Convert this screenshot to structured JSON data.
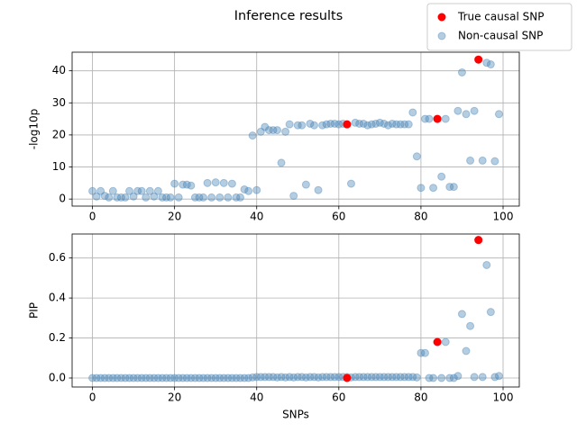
{
  "title": "Inference results",
  "chart_data": [
    {
      "type": "scatter",
      "ylabel": "-log10p",
      "grid": true,
      "legend": "upper right",
      "xlim": [
        -4.95,
        103.95
      ],
      "xticks": [
        0,
        20,
        40,
        60,
        80,
        100
      ],
      "ylim": [
        -2.2,
        45.8
      ],
      "yticks": [
        0,
        10,
        20,
        30,
        40
      ],
      "series": [
        {
          "name": "True causal SNP",
          "color": "#ff0000",
          "alpha": 1,
          "x": [
            62,
            84,
            94
          ],
          "values": [
            23.3,
            25,
            43.5
          ]
        },
        {
          "name": "Non-causal SNP",
          "color": "#4682b4",
          "alpha": 0.4,
          "x": [
            0,
            1,
            2,
            3,
            4,
            5,
            6,
            7,
            8,
            9,
            10,
            11,
            12,
            13,
            14,
            15,
            16,
            17,
            18,
            19,
            20,
            21,
            22,
            23,
            24,
            25,
            26,
            27,
            28,
            29,
            30,
            31,
            32,
            33,
            34,
            35,
            36,
            37,
            38,
            39,
            40,
            41,
            42,
            43,
            44,
            45,
            46,
            47,
            48,
            49,
            50,
            51,
            52,
            53,
            54,
            55,
            56,
            57,
            58,
            59,
            60,
            61,
            62,
            63,
            64,
            65,
            66,
            67,
            68,
            69,
            70,
            71,
            72,
            73,
            74,
            75,
            76,
            77,
            78,
            79,
            80,
            81,
            82,
            83,
            84,
            85,
            86,
            87,
            88,
            89,
            90,
            91,
            92,
            93,
            94,
            95,
            96,
            97,
            98,
            99
          ],
          "values": [
            2.5,
            0.8,
            2.5,
            1,
            0.5,
            2.5,
            0.5,
            0.5,
            0.5,
            2.5,
            0.8,
            2.5,
            2.5,
            0.5,
            2.5,
            0.8,
            2.5,
            0.5,
            0.5,
            0.5,
            4.8,
            0.5,
            4.5,
            4.5,
            4.2,
            0.5,
            0.5,
            0.5,
            5,
            0.5,
            5.2,
            0.5,
            5,
            0.5,
            4.8,
            0.5,
            0.5,
            3,
            2.5,
            19.8,
            2.8,
            21,
            22.5,
            21.5,
            21.5,
            21.5,
            11.3,
            21,
            23.3,
            1,
            23,
            23,
            4.5,
            23.5,
            23,
            2.8,
            23,
            23.3,
            23.5,
            23.5,
            23.3,
            23.5,
            23.3,
            4.8,
            23.8,
            23.5,
            23.5,
            23,
            23.3,
            23.5,
            23.8,
            23.5,
            23,
            23.5,
            23.3,
            23.3,
            23.3,
            23.3,
            27,
            13.3,
            3.5,
            25,
            25,
            3.5,
            25,
            7,
            25,
            3.8,
            3.8,
            27.5,
            39.5,
            26.5,
            12,
            27.5,
            43.5,
            12,
            42.5,
            42,
            11.8,
            26.5
          ]
        }
      ]
    },
    {
      "type": "scatter",
      "xlabel": "SNPs",
      "ylabel": "PIP",
      "grid": true,
      "xlim": [
        -4.95,
        103.95
      ],
      "xticks": [
        0,
        20,
        40,
        60,
        80,
        100
      ],
      "ylim": [
        -0.045,
        0.72
      ],
      "yticks": [
        {
          "value": 0,
          "label": "0.0"
        },
        {
          "value": 0.2,
          "label": "0.2"
        },
        {
          "value": 0.4,
          "label": "0.4"
        },
        {
          "value": 0.6,
          "label": "0.6"
        }
      ],
      "series": [
        {
          "color": "#ff0000",
          "alpha": 1,
          "x": [
            62,
            84,
            94
          ],
          "values": [
            0,
            0.18,
            0.69
          ]
        },
        {
          "color": "#4682b4",
          "alpha": 0.4,
          "x": [
            0,
            1,
            2,
            3,
            4,
            5,
            6,
            7,
            8,
            9,
            10,
            11,
            12,
            13,
            14,
            15,
            16,
            17,
            18,
            19,
            20,
            21,
            22,
            23,
            24,
            25,
            26,
            27,
            28,
            29,
            30,
            31,
            32,
            33,
            34,
            35,
            36,
            37,
            38,
            39,
            40,
            41,
            42,
            43,
            44,
            45,
            46,
            47,
            48,
            49,
            50,
            51,
            52,
            53,
            54,
            55,
            56,
            57,
            58,
            59,
            60,
            61,
            62,
            63,
            64,
            65,
            66,
            67,
            68,
            69,
            70,
            71,
            72,
            73,
            74,
            75,
            76,
            77,
            78,
            79,
            80,
            81,
            82,
            83,
            84,
            85,
            86,
            87,
            88,
            89,
            90,
            91,
            92,
            93,
            94,
            95,
            96,
            97,
            98,
            99
          ],
          "values": [
            0,
            0,
            0,
            0,
            0,
            0,
            0,
            0,
            0,
            0,
            0,
            0,
            0,
            0,
            0,
            0,
            0,
            0,
            0,
            0,
            0,
            0,
            0,
            0,
            0,
            0,
            0,
            0,
            0,
            0,
            0,
            0,
            0,
            0,
            0,
            0,
            0,
            0,
            0,
            0.003,
            0.005,
            0.005,
            0.005,
            0.005,
            0.005,
            0.003,
            0.005,
            0.003,
            0.005,
            0.003,
            0.005,
            0.005,
            0.003,
            0.005,
            0.005,
            0.003,
            0.005,
            0.005,
            0.005,
            0.005,
            0.005,
            0.005,
            0.005,
            0.003,
            0.005,
            0.005,
            0.005,
            0.005,
            0.005,
            0.005,
            0.005,
            0.005,
            0.005,
            0.005,
            0.005,
            0.005,
            0.005,
            0.005,
            0.005,
            0.003,
            0.125,
            0.125,
            0,
            0,
            0.18,
            0,
            0.18,
            0,
            0,
            0.01,
            0.32,
            0.135,
            0.26,
            0.005,
            0.69,
            0.005,
            0.565,
            0.33,
            0.005,
            0.01
          ]
        }
      ]
    }
  ]
}
